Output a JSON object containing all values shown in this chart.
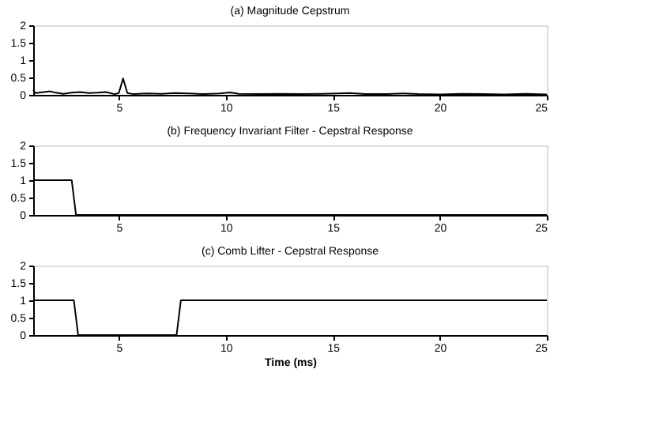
{
  "chart_data": [
    {
      "type": "line",
      "title": "(a) Magnitude Cepstrum",
      "x": [
        1,
        1.1,
        1.5,
        1.8,
        2,
        2.4,
        2.8,
        3.2,
        3.6,
        4,
        4.4,
        4.8,
        5.0,
        5.2,
        5.4,
        5.7,
        6.3,
        7,
        7.6,
        8.3,
        9,
        9.7,
        10.2,
        10.6,
        11.5,
        12.5,
        13.5,
        14.5,
        15.2,
        15.8,
        16.5,
        17.5,
        18.3,
        19,
        20,
        21,
        22,
        23,
        24,
        25
      ],
      "series": [
        {
          "color": "#000000",
          "values": [
            0.15,
            0.05,
            0.08,
            0.1,
            0.07,
            0.03,
            0.06,
            0.08,
            0.05,
            0.06,
            0.08,
            0.02,
            0.05,
            0.47,
            0.05,
            0.02,
            0.04,
            0.03,
            0.05,
            0.04,
            0.02,
            0.04,
            0.07,
            0.03,
            0.02,
            0.03,
            0.02,
            0.03,
            0.04,
            0.05,
            0.02,
            0.02,
            0.04,
            0.02,
            0.01,
            0.03,
            0.02,
            0.01,
            0.03,
            0.01
          ]
        }
      ],
      "xlim": [
        1,
        25
      ],
      "xticks": [
        5,
        10,
        15,
        20,
        25
      ],
      "ylim": [
        0,
        2
      ],
      "yticks": [
        0,
        0.5,
        1,
        1.5,
        2
      ],
      "grid": false
    },
    {
      "type": "line",
      "title": "(b) Frequency Invariant Filter - Cepstral Response",
      "x": [
        1,
        2.8,
        3.0,
        25
      ],
      "series": [
        {
          "color": "#000000",
          "values": [
            1,
            1,
            0,
            0
          ]
        }
      ],
      "xlim": [
        1,
        25
      ],
      "xticks": [
        5,
        10,
        15,
        20,
        25
      ],
      "ylim": [
        0,
        2
      ],
      "yticks": [
        0,
        0.5,
        1,
        1.5,
        2
      ],
      "grid": false
    },
    {
      "type": "line",
      "title": "(c) Comb Lifter - Cepstral Response",
      "xlabel": "Time (ms)",
      "x": [
        1,
        2.9,
        3.1,
        7.7,
        7.9,
        25
      ],
      "series": [
        {
          "color": "#000000",
          "values": [
            1,
            1,
            0,
            0,
            1,
            1
          ]
        }
      ],
      "xlim": [
        1,
        25
      ],
      "xticks": [
        5,
        10,
        15,
        20,
        25
      ],
      "ylim": [
        0,
        2
      ],
      "yticks": [
        0,
        0.5,
        1,
        1.5,
        2
      ],
      "grid": false
    }
  ]
}
